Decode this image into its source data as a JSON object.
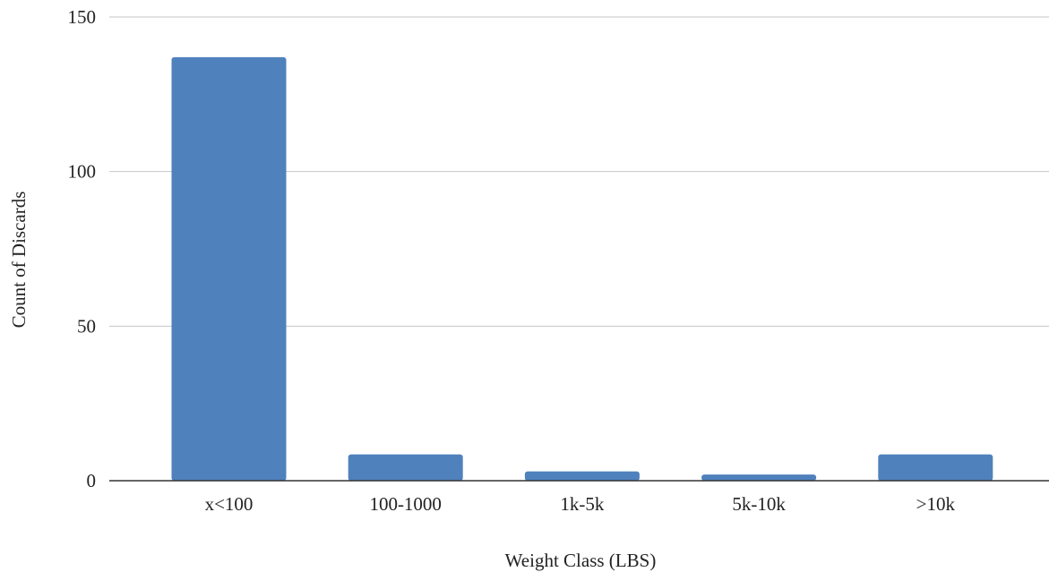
{
  "chart_data": {
    "type": "bar",
    "categories": [
      "x<100",
      "100-1000",
      "1k-5k",
      "5k-10k",
      ">10k"
    ],
    "values": [
      137,
      8.5,
      3,
      2,
      8.5
    ],
    "xlabel": "Weight Class (LBS)",
    "ylabel": "Count of Discards",
    "ylim": [
      0,
      150
    ],
    "yticks": [
      0,
      50,
      100,
      150
    ],
    "grid": true,
    "bar_color": "#4f81bd"
  }
}
